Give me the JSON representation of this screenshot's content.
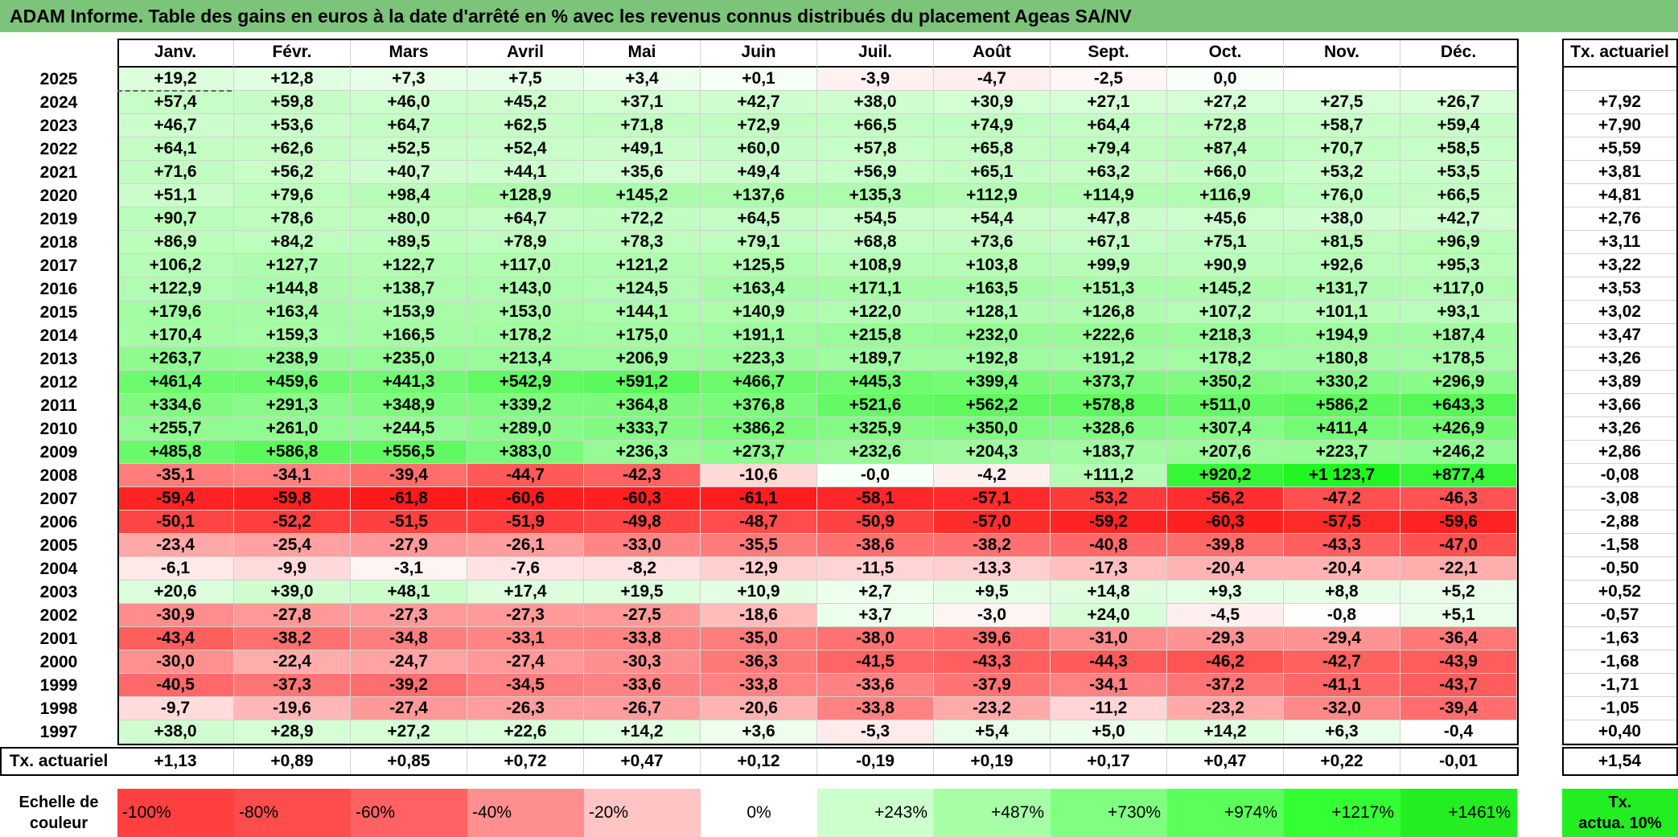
{
  "title": "ADAM Informe. Table des gains en euros à la date d'arrêté en % avec les revenus connus distribués du placement Ageas SA/NV",
  "months": [
    "Janv.",
    "Févr.",
    "Mars",
    "Avril",
    "Mai",
    "Juin",
    "Juil.",
    "Août",
    "Sept.",
    "Oct.",
    "Nov.",
    "Déc."
  ],
  "rate_header": "Tx. actuariel",
  "rows": [
    {
      "year": "2025",
      "values": [
        "+19,2",
        "+12,8",
        "+7,3",
        "+7,5",
        "+3,4",
        "+0,1",
        "-3,9",
        "-4,7",
        "-2,5",
        "0,0",
        "",
        ""
      ],
      "rate": ""
    },
    {
      "year": "2024",
      "values": [
        "+57,4",
        "+59,8",
        "+46,0",
        "+45,2",
        "+37,1",
        "+42,7",
        "+38,0",
        "+30,9",
        "+27,1",
        "+27,2",
        "+27,5",
        "+26,7"
      ],
      "rate": "+7,92"
    },
    {
      "year": "2023",
      "values": [
        "+46,7",
        "+53,6",
        "+64,7",
        "+62,5",
        "+71,8",
        "+72,9",
        "+66,5",
        "+74,9",
        "+64,4",
        "+72,8",
        "+58,7",
        "+59,4"
      ],
      "rate": "+7,90"
    },
    {
      "year": "2022",
      "values": [
        "+64,1",
        "+62,6",
        "+52,5",
        "+52,4",
        "+49,1",
        "+60,0",
        "+57,8",
        "+65,8",
        "+79,4",
        "+87,4",
        "+70,7",
        "+58,5"
      ],
      "rate": "+5,59"
    },
    {
      "year": "2021",
      "values": [
        "+71,6",
        "+56,2",
        "+40,7",
        "+44,1",
        "+35,6",
        "+49,4",
        "+56,9",
        "+65,1",
        "+63,2",
        "+66,0",
        "+53,2",
        "+53,5"
      ],
      "rate": "+3,81"
    },
    {
      "year": "2020",
      "values": [
        "+51,1",
        "+79,6",
        "+98,4",
        "+128,9",
        "+145,2",
        "+137,6",
        "+135,3",
        "+112,9",
        "+114,9",
        "+116,9",
        "+76,0",
        "+66,5"
      ],
      "rate": "+4,81"
    },
    {
      "year": "2019",
      "values": [
        "+90,7",
        "+78,6",
        "+80,0",
        "+64,7",
        "+72,2",
        "+64,5",
        "+54,5",
        "+54,4",
        "+47,8",
        "+45,6",
        "+38,0",
        "+42,7"
      ],
      "rate": "+2,76"
    },
    {
      "year": "2018",
      "values": [
        "+86,9",
        "+84,2",
        "+89,5",
        "+78,9",
        "+78,3",
        "+79,1",
        "+68,8",
        "+73,6",
        "+67,1",
        "+75,1",
        "+81,5",
        "+96,9"
      ],
      "rate": "+3,11"
    },
    {
      "year": "2017",
      "values": [
        "+106,2",
        "+127,7",
        "+122,7",
        "+117,0",
        "+121,2",
        "+125,5",
        "+108,9",
        "+103,8",
        "+99,9",
        "+90,9",
        "+92,6",
        "+95,3"
      ],
      "rate": "+3,22"
    },
    {
      "year": "2016",
      "values": [
        "+122,9",
        "+144,8",
        "+138,7",
        "+143,0",
        "+124,5",
        "+163,4",
        "+171,1",
        "+163,5",
        "+151,3",
        "+145,2",
        "+131,7",
        "+117,0"
      ],
      "rate": "+3,53"
    },
    {
      "year": "2015",
      "values": [
        "+179,6",
        "+163,4",
        "+153,9",
        "+153,0",
        "+144,1",
        "+140,9",
        "+122,0",
        "+128,1",
        "+126,8",
        "+107,2",
        "+101,1",
        "+93,1"
      ],
      "rate": "+3,02"
    },
    {
      "year": "2014",
      "values": [
        "+170,4",
        "+159,3",
        "+166,5",
        "+178,2",
        "+175,0",
        "+191,1",
        "+215,8",
        "+232,0",
        "+222,6",
        "+218,3",
        "+194,9",
        "+187,4"
      ],
      "rate": "+3,47"
    },
    {
      "year": "2013",
      "values": [
        "+263,7",
        "+238,9",
        "+235,0",
        "+213,4",
        "+206,9",
        "+223,3",
        "+189,7",
        "+192,8",
        "+191,2",
        "+178,2",
        "+180,8",
        "+178,5"
      ],
      "rate": "+3,26"
    },
    {
      "year": "2012",
      "values": [
        "+461,4",
        "+459,6",
        "+441,3",
        "+542,9",
        "+591,2",
        "+466,7",
        "+445,3",
        "+399,4",
        "+373,7",
        "+350,2",
        "+330,2",
        "+296,9"
      ],
      "rate": "+3,89"
    },
    {
      "year": "2011",
      "values": [
        "+334,6",
        "+291,3",
        "+348,9",
        "+339,2",
        "+364,8",
        "+376,8",
        "+521,6",
        "+562,2",
        "+578,8",
        "+511,0",
        "+586,2",
        "+643,3"
      ],
      "rate": "+3,66"
    },
    {
      "year": "2010",
      "values": [
        "+255,7",
        "+261,0",
        "+244,5",
        "+289,0",
        "+333,7",
        "+386,2",
        "+325,9",
        "+350,0",
        "+328,6",
        "+307,4",
        "+411,4",
        "+426,9"
      ],
      "rate": "+3,26"
    },
    {
      "year": "2009",
      "values": [
        "+485,8",
        "+586,8",
        "+556,5",
        "+383,0",
        "+236,3",
        "+273,7",
        "+232,6",
        "+204,3",
        "+183,7",
        "+207,6",
        "+223,7",
        "+246,2"
      ],
      "rate": "+2,86"
    },
    {
      "year": "2008",
      "values": [
        "-35,1",
        "-34,1",
        "-39,4",
        "-44,7",
        "-42,3",
        "-10,6",
        "-0,0",
        "-4,2",
        "+111,2",
        "+920,2",
        "+1 123,7",
        "+877,4"
      ],
      "rate": "-0,08"
    },
    {
      "year": "2007",
      "values": [
        "-59,4",
        "-59,8",
        "-61,8",
        "-60,6",
        "-60,3",
        "-61,1",
        "-58,1",
        "-57,1",
        "-53,2",
        "-56,2",
        "-47,2",
        "-46,3"
      ],
      "rate": "-3,08"
    },
    {
      "year": "2006",
      "values": [
        "-50,1",
        "-52,2",
        "-51,5",
        "-51,9",
        "-49,8",
        "-48,7",
        "-50,9",
        "-57,0",
        "-59,2",
        "-60,3",
        "-57,5",
        "-59,6"
      ],
      "rate": "-2,88"
    },
    {
      "year": "2005",
      "values": [
        "-23,4",
        "-25,4",
        "-27,9",
        "-26,1",
        "-33,0",
        "-35,5",
        "-38,6",
        "-38,2",
        "-40,8",
        "-39,8",
        "-43,3",
        "-47,0"
      ],
      "rate": "-1,58"
    },
    {
      "year": "2004",
      "values": [
        "-6,1",
        "-9,9",
        "-3,1",
        "-7,6",
        "-8,2",
        "-12,9",
        "-11,5",
        "-13,3",
        "-17,3",
        "-20,4",
        "-20,4",
        "-22,1"
      ],
      "rate": "-0,50"
    },
    {
      "year": "2003",
      "values": [
        "+20,6",
        "+39,0",
        "+48,1",
        "+17,4",
        "+19,5",
        "+10,9",
        "+2,7",
        "+9,5",
        "+14,8",
        "+9,3",
        "+8,8",
        "+5,2"
      ],
      "rate": "+0,52"
    },
    {
      "year": "2002",
      "values": [
        "-30,9",
        "-27,8",
        "-27,3",
        "-27,3",
        "-27,5",
        "-18,6",
        "+3,7",
        "-3,0",
        "+24,0",
        "-4,5",
        "-0,8",
        "+5,1"
      ],
      "rate": "-0,57"
    },
    {
      "year": "2001",
      "values": [
        "-43,4",
        "-38,2",
        "-34,8",
        "-33,1",
        "-33,8",
        "-35,0",
        "-38,0",
        "-39,6",
        "-31,0",
        "-29,3",
        "-29,4",
        "-36,4"
      ],
      "rate": "-1,63"
    },
    {
      "year": "2000",
      "values": [
        "-30,0",
        "-22,4",
        "-24,7",
        "-27,4",
        "-30,3",
        "-36,3",
        "-41,5",
        "-43,3",
        "-44,3",
        "-46,2",
        "-42,7",
        "-43,9"
      ],
      "rate": "-1,68"
    },
    {
      "year": "1999",
      "values": [
        "-40,5",
        "-37,3",
        "-39,2",
        "-34,5",
        "-33,6",
        "-33,8",
        "-33,6",
        "-37,9",
        "-34,1",
        "-37,2",
        "-41,1",
        "-43,7"
      ],
      "rate": "-1,71"
    },
    {
      "year": "1998",
      "values": [
        "-9,7",
        "-19,6",
        "-27,4",
        "-26,3",
        "-26,7",
        "-20,6",
        "-33,8",
        "-23,2",
        "-11,2",
        "-23,2",
        "-32,0",
        "-39,4"
      ],
      "rate": "-1,05"
    },
    {
      "year": "1997",
      "values": [
        "+38,0",
        "+28,9",
        "+27,2",
        "+22,6",
        "+14,2",
        "+3,6",
        "-5,3",
        "+5,4",
        "+5,0",
        "+14,2",
        "+6,3",
        "-0,4"
      ],
      "rate": "+0,40"
    }
  ],
  "totals": {
    "label": "Tx. actuariel",
    "values": [
      "+1,13",
      "+0,89",
      "+0,85",
      "+0,72",
      "+0,47",
      "+0,12",
      "-0,19",
      "+0,19",
      "+0,17",
      "+0,47",
      "+0,22",
      "-0,01"
    ],
    "rate": "+1,54"
  },
  "legend": {
    "label_line1": "Echelle de",
    "label_line2": "couleur",
    "steps": [
      {
        "text": "-100%",
        "color": "#ff4040"
      },
      {
        "text": "-80%",
        "color": "#ff4d4d"
      },
      {
        "text": "-60%",
        "color": "#ff6262"
      },
      {
        "text": "-40%",
        "color": "#ff8f8f"
      },
      {
        "text": "-20%",
        "color": "#ffc4c4"
      },
      {
        "text": "0%",
        "color": "#ffffff"
      },
      {
        "text": "+243%",
        "color": "#ccffcc"
      },
      {
        "text": "+487%",
        "color": "#a6ffa6"
      },
      {
        "text": "+730%",
        "color": "#80ff80"
      },
      {
        "text": "+974%",
        "color": "#5aff5a"
      },
      {
        "text": "+1217%",
        "color": "#33ff33"
      },
      {
        "text": "+1461%",
        "color": "#22ee22"
      }
    ],
    "rate_line1": "Tx.",
    "rate_line2": "actua. 10%",
    "rate_color": "#22ee22"
  },
  "colors": {
    "title_bar": "#7cc47a",
    "pos_max": "#22ee22",
    "neg_max": "#ff1a1a"
  }
}
